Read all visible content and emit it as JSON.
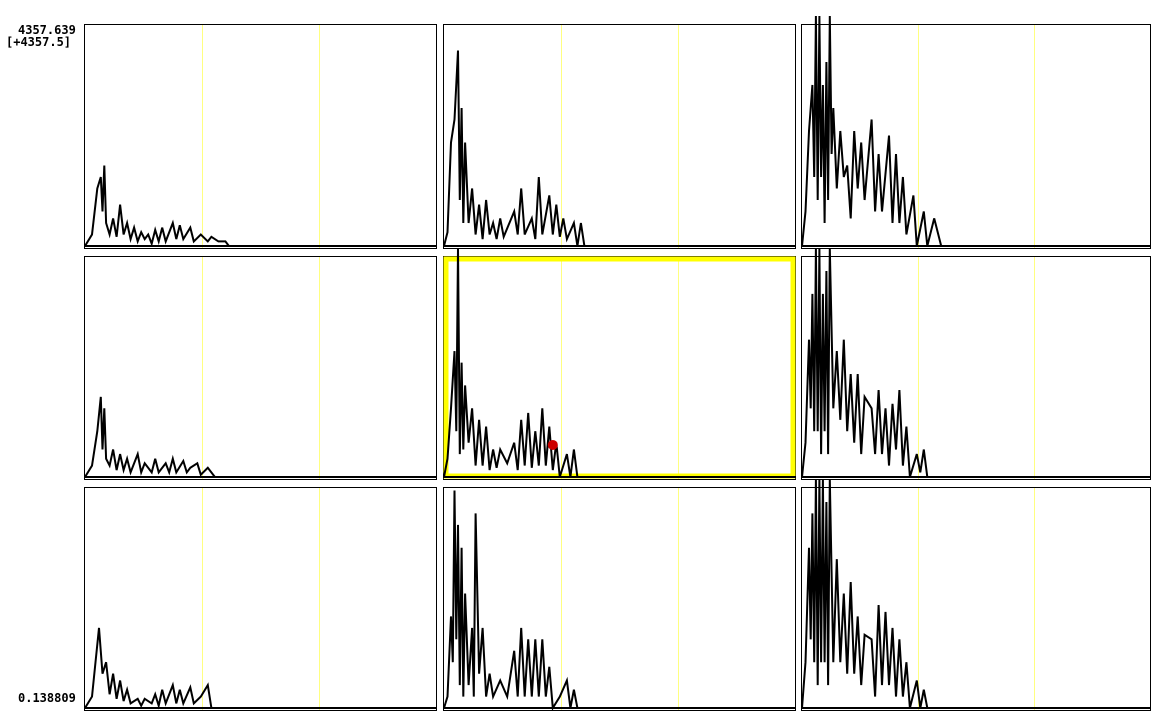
{
  "scale": {
    "max_label": "4357.639",
    "max_bracket_label": "[+4357.5]",
    "min_label": "0.138809"
  },
  "colors": {
    "background": "#ffffff",
    "frame": "#000000",
    "trace": "#000000",
    "grid_line": "#ffff80",
    "highlight": "#ffff00",
    "marker": "#cc0000"
  },
  "grid": {
    "rows": 3,
    "cols": 3,
    "selected_panel": [
      1,
      1
    ],
    "vertical_guides_per_panel": 2
  },
  "panels": [
    {
      "row": 0,
      "col": 0,
      "peaks": [
        [
          0.0,
          0
        ],
        [
          0.02,
          0.05
        ],
        [
          0.035,
          0.25
        ],
        [
          0.045,
          0.3
        ],
        [
          0.05,
          0.15
        ],
        [
          0.055,
          0.35
        ],
        [
          0.06,
          0.1
        ],
        [
          0.07,
          0.05
        ],
        [
          0.08,
          0.12
        ],
        [
          0.09,
          0.04
        ],
        [
          0.1,
          0.18
        ],
        [
          0.11,
          0.05
        ],
        [
          0.12,
          0.1
        ],
        [
          0.13,
          0.03
        ],
        [
          0.14,
          0.08
        ],
        [
          0.15,
          0.02
        ],
        [
          0.16,
          0.06
        ],
        [
          0.17,
          0.03
        ],
        [
          0.18,
          0.05
        ],
        [
          0.19,
          0.01
        ],
        [
          0.2,
          0.07
        ],
        [
          0.21,
          0.02
        ],
        [
          0.22,
          0.08
        ],
        [
          0.23,
          0.02
        ],
        [
          0.25,
          0.1
        ],
        [
          0.26,
          0.03
        ],
        [
          0.27,
          0.09
        ],
        [
          0.28,
          0.03
        ],
        [
          0.3,
          0.08
        ],
        [
          0.31,
          0.02
        ],
        [
          0.33,
          0.05
        ],
        [
          0.35,
          0.02
        ],
        [
          0.36,
          0.04
        ],
        [
          0.38,
          0.02
        ],
        [
          0.4,
          0.02
        ],
        [
          0.41,
          0.0
        ],
        [
          1.0,
          0
        ]
      ]
    },
    {
      "row": 0,
      "col": 1,
      "peaks": [
        [
          0.0,
          0
        ],
        [
          0.01,
          0.06
        ],
        [
          0.02,
          0.45
        ],
        [
          0.03,
          0.55
        ],
        [
          0.04,
          0.85
        ],
        [
          0.045,
          0.2
        ],
        [
          0.05,
          0.6
        ],
        [
          0.055,
          0.1
        ],
        [
          0.06,
          0.45
        ],
        [
          0.07,
          0.1
        ],
        [
          0.08,
          0.25
        ],
        [
          0.09,
          0.05
        ],
        [
          0.1,
          0.18
        ],
        [
          0.11,
          0.03
        ],
        [
          0.12,
          0.2
        ],
        [
          0.13,
          0.05
        ],
        [
          0.14,
          0.1
        ],
        [
          0.15,
          0.03
        ],
        [
          0.16,
          0.12
        ],
        [
          0.17,
          0.04
        ],
        [
          0.2,
          0.15
        ],
        [
          0.21,
          0.05
        ],
        [
          0.22,
          0.25
        ],
        [
          0.23,
          0.05
        ],
        [
          0.25,
          0.12
        ],
        [
          0.26,
          0.03
        ],
        [
          0.27,
          0.3
        ],
        [
          0.28,
          0.05
        ],
        [
          0.3,
          0.22
        ],
        [
          0.31,
          0.05
        ],
        [
          0.32,
          0.18
        ],
        [
          0.33,
          0.04
        ],
        [
          0.34,
          0.12
        ],
        [
          0.35,
          0.03
        ],
        [
          0.37,
          0.1
        ],
        [
          0.38,
          0.0
        ],
        [
          0.39,
          0.1
        ],
        [
          0.4,
          0.0
        ],
        [
          1.0,
          0
        ]
      ]
    },
    {
      "row": 0,
      "col": 2,
      "peaks": [
        [
          0.0,
          0
        ],
        [
          0.01,
          0.15
        ],
        [
          0.02,
          0.5
        ],
        [
          0.03,
          0.7
        ],
        [
          0.035,
          0.3
        ],
        [
          0.04,
          1.0
        ],
        [
          0.045,
          0.2
        ],
        [
          0.05,
          1.0
        ],
        [
          0.055,
          0.3
        ],
        [
          0.06,
          0.7
        ],
        [
          0.065,
          0.1
        ],
        [
          0.07,
          0.8
        ],
        [
          0.075,
          0.2
        ],
        [
          0.08,
          1.0
        ],
        [
          0.085,
          0.4
        ],
        [
          0.09,
          0.6
        ],
        [
          0.1,
          0.25
        ],
        [
          0.11,
          0.5
        ],
        [
          0.12,
          0.3
        ],
        [
          0.13,
          0.35
        ],
        [
          0.14,
          0.12
        ],
        [
          0.15,
          0.5
        ],
        [
          0.16,
          0.25
        ],
        [
          0.17,
          0.45
        ],
        [
          0.18,
          0.2
        ],
        [
          0.2,
          0.55
        ],
        [
          0.21,
          0.15
        ],
        [
          0.22,
          0.4
        ],
        [
          0.23,
          0.15
        ],
        [
          0.25,
          0.48
        ],
        [
          0.26,
          0.1
        ],
        [
          0.27,
          0.4
        ],
        [
          0.28,
          0.1
        ],
        [
          0.29,
          0.3
        ],
        [
          0.3,
          0.05
        ],
        [
          0.32,
          0.22
        ],
        [
          0.33,
          0.0
        ],
        [
          0.35,
          0.15
        ],
        [
          0.36,
          0.0
        ],
        [
          0.38,
          0.12
        ],
        [
          0.4,
          0.0
        ],
        [
          1.0,
          0
        ]
      ]
    },
    {
      "row": 1,
      "col": 0,
      "peaks": [
        [
          0.0,
          0
        ],
        [
          0.02,
          0.05
        ],
        [
          0.035,
          0.2
        ],
        [
          0.045,
          0.35
        ],
        [
          0.05,
          0.12
        ],
        [
          0.055,
          0.3
        ],
        [
          0.06,
          0.08
        ],
        [
          0.07,
          0.05
        ],
        [
          0.08,
          0.12
        ],
        [
          0.09,
          0.03
        ],
        [
          0.1,
          0.1
        ],
        [
          0.11,
          0.03
        ],
        [
          0.12,
          0.08
        ],
        [
          0.13,
          0.02
        ],
        [
          0.15,
          0.1
        ],
        [
          0.16,
          0.02
        ],
        [
          0.17,
          0.06
        ],
        [
          0.19,
          0.02
        ],
        [
          0.2,
          0.08
        ],
        [
          0.21,
          0.02
        ],
        [
          0.23,
          0.06
        ],
        [
          0.24,
          0.02
        ],
        [
          0.25,
          0.08
        ],
        [
          0.26,
          0.02
        ],
        [
          0.28,
          0.07
        ],
        [
          0.29,
          0.02
        ],
        [
          0.3,
          0.04
        ],
        [
          0.32,
          0.06
        ],
        [
          0.33,
          0.01
        ],
        [
          0.35,
          0.04
        ],
        [
          0.37,
          0.0
        ],
        [
          1.0,
          0
        ]
      ]
    },
    {
      "row": 1,
      "col": 1,
      "peaks": [
        [
          0.0,
          0
        ],
        [
          0.01,
          0.08
        ],
        [
          0.02,
          0.3
        ],
        [
          0.03,
          0.55
        ],
        [
          0.035,
          0.2
        ],
        [
          0.04,
          1.0
        ],
        [
          0.045,
          0.1
        ],
        [
          0.05,
          0.5
        ],
        [
          0.055,
          0.12
        ],
        [
          0.06,
          0.4
        ],
        [
          0.07,
          0.15
        ],
        [
          0.08,
          0.3
        ],
        [
          0.09,
          0.05
        ],
        [
          0.1,
          0.25
        ],
        [
          0.11,
          0.05
        ],
        [
          0.12,
          0.22
        ],
        [
          0.13,
          0.03
        ],
        [
          0.14,
          0.12
        ],
        [
          0.15,
          0.04
        ],
        [
          0.16,
          0.12
        ],
        [
          0.18,
          0.06
        ],
        [
          0.2,
          0.15
        ],
        [
          0.21,
          0.03
        ],
        [
          0.22,
          0.25
        ],
        [
          0.23,
          0.05
        ],
        [
          0.24,
          0.28
        ],
        [
          0.25,
          0.04
        ],
        [
          0.26,
          0.2
        ],
        [
          0.27,
          0.05
        ],
        [
          0.28,
          0.3
        ],
        [
          0.29,
          0.05
        ],
        [
          0.3,
          0.22
        ],
        [
          0.31,
          0.03
        ],
        [
          0.32,
          0.15
        ],
        [
          0.33,
          0.0
        ],
        [
          0.35,
          0.1
        ],
        [
          0.36,
          0.0
        ],
        [
          0.37,
          0.12
        ],
        [
          0.38,
          0.0
        ],
        [
          1.0,
          0
        ]
      ],
      "marker": [
        0.31,
        0.14
      ]
    },
    {
      "row": 1,
      "col": 2,
      "peaks": [
        [
          0.0,
          0
        ],
        [
          0.01,
          0.15
        ],
        [
          0.02,
          0.6
        ],
        [
          0.025,
          0.3
        ],
        [
          0.03,
          0.8
        ],
        [
          0.035,
          0.2
        ],
        [
          0.04,
          1.0
        ],
        [
          0.045,
          0.2
        ],
        [
          0.05,
          1.0
        ],
        [
          0.055,
          0.1
        ],
        [
          0.06,
          0.8
        ],
        [
          0.065,
          0.2
        ],
        [
          0.07,
          0.9
        ],
        [
          0.075,
          0.1
        ],
        [
          0.08,
          1.0
        ],
        [
          0.09,
          0.3
        ],
        [
          0.1,
          0.55
        ],
        [
          0.11,
          0.25
        ],
        [
          0.12,
          0.6
        ],
        [
          0.13,
          0.2
        ],
        [
          0.14,
          0.45
        ],
        [
          0.15,
          0.15
        ],
        [
          0.16,
          0.45
        ],
        [
          0.17,
          0.1
        ],
        [
          0.18,
          0.35
        ],
        [
          0.2,
          0.3
        ],
        [
          0.21,
          0.1
        ],
        [
          0.22,
          0.38
        ],
        [
          0.23,
          0.1
        ],
        [
          0.24,
          0.3
        ],
        [
          0.25,
          0.05
        ],
        [
          0.26,
          0.32
        ],
        [
          0.27,
          0.12
        ],
        [
          0.28,
          0.38
        ],
        [
          0.29,
          0.05
        ],
        [
          0.3,
          0.22
        ],
        [
          0.31,
          0.0
        ],
        [
          0.33,
          0.1
        ],
        [
          0.34,
          0.02
        ],
        [
          0.35,
          0.12
        ],
        [
          0.36,
          0.0
        ],
        [
          1.0,
          0
        ]
      ]
    },
    {
      "row": 2,
      "col": 0,
      "peaks": [
        [
          0.0,
          0
        ],
        [
          0.02,
          0.05
        ],
        [
          0.03,
          0.2
        ],
        [
          0.04,
          0.35
        ],
        [
          0.05,
          0.15
        ],
        [
          0.06,
          0.2
        ],
        [
          0.07,
          0.06
        ],
        [
          0.08,
          0.15
        ],
        [
          0.09,
          0.04
        ],
        [
          0.1,
          0.12
        ],
        [
          0.11,
          0.03
        ],
        [
          0.12,
          0.08
        ],
        [
          0.13,
          0.02
        ],
        [
          0.15,
          0.04
        ],
        [
          0.16,
          0.01
        ],
        [
          0.17,
          0.04
        ],
        [
          0.19,
          0.02
        ],
        [
          0.2,
          0.06
        ],
        [
          0.21,
          0.01
        ],
        [
          0.22,
          0.08
        ],
        [
          0.23,
          0.02
        ],
        [
          0.25,
          0.1
        ],
        [
          0.26,
          0.02
        ],
        [
          0.27,
          0.08
        ],
        [
          0.28,
          0.02
        ],
        [
          0.3,
          0.09
        ],
        [
          0.31,
          0.02
        ],
        [
          0.33,
          0.05
        ],
        [
          0.35,
          0.1
        ],
        [
          0.36,
          0.0
        ],
        [
          1.0,
          0
        ]
      ]
    },
    {
      "row": 2,
      "col": 1,
      "peaks": [
        [
          0.0,
          0
        ],
        [
          0.01,
          0.05
        ],
        [
          0.02,
          0.4
        ],
        [
          0.025,
          0.2
        ],
        [
          0.03,
          0.95
        ],
        [
          0.035,
          0.3
        ],
        [
          0.04,
          0.8
        ],
        [
          0.045,
          0.1
        ],
        [
          0.05,
          0.7
        ],
        [
          0.055,
          0.05
        ],
        [
          0.06,
          0.5
        ],
        [
          0.07,
          0.1
        ],
        [
          0.08,
          0.35
        ],
        [
          0.085,
          0.05
        ],
        [
          0.09,
          0.85
        ],
        [
          0.1,
          0.15
        ],
        [
          0.11,
          0.35
        ],
        [
          0.12,
          0.05
        ],
        [
          0.13,
          0.15
        ],
        [
          0.14,
          0.05
        ],
        [
          0.16,
          0.12
        ],
        [
          0.18,
          0.05
        ],
        [
          0.2,
          0.25
        ],
        [
          0.21,
          0.05
        ],
        [
          0.22,
          0.35
        ],
        [
          0.23,
          0.05
        ],
        [
          0.24,
          0.3
        ],
        [
          0.25,
          0.05
        ],
        [
          0.26,
          0.3
        ],
        [
          0.27,
          0.05
        ],
        [
          0.28,
          0.3
        ],
        [
          0.29,
          0.05
        ],
        [
          0.3,
          0.18
        ],
        [
          0.31,
          0.0
        ],
        [
          0.33,
          0.05
        ],
        [
          0.35,
          0.12
        ],
        [
          0.36,
          0.0
        ],
        [
          0.37,
          0.08
        ],
        [
          0.38,
          0.0
        ],
        [
          1.0,
          0
        ]
      ]
    },
    {
      "row": 2,
      "col": 2,
      "peaks": [
        [
          0.0,
          0
        ],
        [
          0.01,
          0.2
        ],
        [
          0.02,
          0.7
        ],
        [
          0.025,
          0.3
        ],
        [
          0.03,
          0.85
        ],
        [
          0.035,
          0.2
        ],
        [
          0.04,
          1.0
        ],
        [
          0.045,
          0.1
        ],
        [
          0.05,
          1.0
        ],
        [
          0.055,
          0.2
        ],
        [
          0.06,
          1.0
        ],
        [
          0.065,
          0.2
        ],
        [
          0.07,
          0.9
        ],
        [
          0.075,
          0.1
        ],
        [
          0.08,
          1.0
        ],
        [
          0.09,
          0.2
        ],
        [
          0.1,
          0.65
        ],
        [
          0.11,
          0.2
        ],
        [
          0.12,
          0.5
        ],
        [
          0.13,
          0.15
        ],
        [
          0.14,
          0.55
        ],
        [
          0.15,
          0.15
        ],
        [
          0.16,
          0.4
        ],
        [
          0.17,
          0.1
        ],
        [
          0.18,
          0.32
        ],
        [
          0.2,
          0.3
        ],
        [
          0.21,
          0.05
        ],
        [
          0.22,
          0.45
        ],
        [
          0.23,
          0.1
        ],
        [
          0.24,
          0.42
        ],
        [
          0.25,
          0.1
        ],
        [
          0.26,
          0.35
        ],
        [
          0.27,
          0.05
        ],
        [
          0.28,
          0.3
        ],
        [
          0.29,
          0.05
        ],
        [
          0.3,
          0.2
        ],
        [
          0.31,
          0.0
        ],
        [
          0.33,
          0.12
        ],
        [
          0.34,
          0.0
        ],
        [
          0.35,
          0.08
        ],
        [
          0.36,
          0.0
        ],
        [
          1.0,
          0
        ]
      ]
    }
  ]
}
